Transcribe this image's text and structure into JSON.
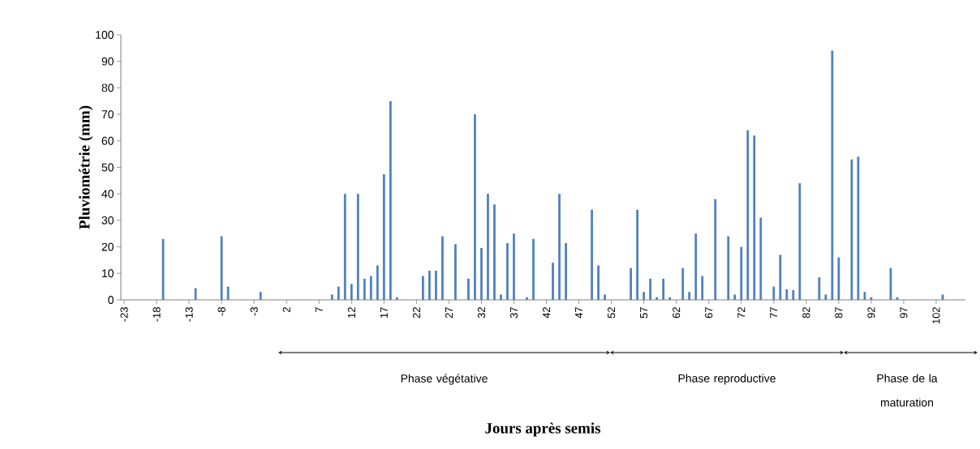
{
  "chart_data": {
    "type": "bar",
    "ylabel": "Pluviométrie (mm)",
    "color": "#4f81bd",
    "x": [
      -23,
      -22,
      -21,
      -20,
      -19,
      -18,
      -17,
      -16,
      -15,
      -14,
      -13,
      -12,
      -11,
      -10,
      -9,
      -8,
      -7,
      -6,
      -5,
      -4,
      -3,
      -2,
      -1,
      0,
      1,
      2,
      3,
      4,
      5,
      6,
      7,
      8,
      9,
      10,
      11,
      12,
      13,
      14,
      15,
      16,
      17,
      18,
      19,
      20,
      21,
      22,
      23,
      24,
      25,
      26,
      27,
      28,
      29,
      30,
      31,
      32,
      33,
      34,
      35,
      36,
      37,
      38,
      39,
      40,
      41,
      42,
      43,
      44,
      45,
      46,
      47,
      48,
      49,
      50,
      51,
      52,
      53,
      54,
      55,
      56,
      57,
      58,
      59,
      60,
      61,
      62,
      63,
      64,
      65,
      66,
      67,
      68,
      69,
      70,
      71,
      72,
      73,
      74,
      75,
      76,
      77,
      78,
      79,
      80,
      81,
      82,
      83,
      84,
      85,
      86,
      87,
      88,
      89,
      90,
      91,
      92,
      93,
      94,
      95,
      96,
      97,
      98,
      99,
      100,
      101,
      102,
      103,
      104,
      105,
      106
    ],
    "values": [
      0,
      0,
      0,
      0,
      0,
      0,
      23,
      0,
      0,
      0,
      0,
      4.4,
      0,
      0,
      0,
      24,
      5,
      0,
      0,
      0,
      0,
      3,
      0,
      0,
      0,
      0,
      0,
      0,
      0,
      0,
      0,
      0,
      2,
      5,
      40,
      6,
      40,
      8,
      9,
      13,
      47.4,
      75,
      1,
      0,
      0,
      0,
      9,
      11,
      11,
      24,
      0,
      21,
      0,
      8,
      70,
      19.6,
      40,
      36,
      2,
      21.4,
      25,
      0,
      1,
      23,
      0,
      0,
      14,
      40,
      21.4,
      0,
      0,
      0,
      34,
      13,
      2,
      0,
      0,
      0,
      12,
      34,
      3,
      8,
      1,
      8,
      1,
      0,
      12,
      3,
      25,
      9,
      0,
      38,
      0,
      24,
      2,
      20,
      64,
      62,
      31,
      0,
      5,
      17,
      4,
      3.7,
      44,
      0,
      0,
      8.5,
      2,
      94,
      16,
      0,
      53,
      54,
      3,
      1,
      0,
      0,
      12,
      1,
      0,
      0,
      0,
      0,
      0,
      0,
      2,
      0,
      0,
      0
    ],
    "xlim": [
      -23.5,
      106.5
    ],
    "ylim": [
      0,
      100
    ],
    "xticks": [
      -23,
      -18,
      -13,
      -8,
      -3,
      2,
      7,
      12,
      17,
      22,
      27,
      32,
      37,
      42,
      47,
      52,
      57,
      62,
      67,
      72,
      77,
      82,
      87,
      92,
      97,
      102
    ],
    "yticks": [
      0,
      10,
      20,
      30,
      40,
      50,
      60,
      70,
      80,
      90,
      100
    ],
    "annotations": [
      "Phase végétative",
      "Phase reproductive",
      "Phase de la maturation",
      "Jours après semis"
    ]
  }
}
